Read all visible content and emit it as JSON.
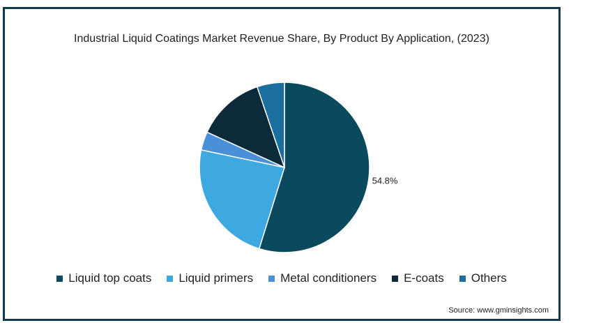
{
  "chart_data": {
    "type": "pie",
    "title": "Industrial Liquid Coatings Market Revenue Share, By Product By Application, (2023)",
    "slices": [
      {
        "label": "Liquid top coats",
        "value": 54.8,
        "color": "#0b4a5e",
        "data_label": "54.8%"
      },
      {
        "label": "Liquid primers",
        "value": 23.5,
        "color": "#3ea9e1"
      },
      {
        "label": "Metal conditioners",
        "value": 3.5,
        "color": "#4a90d9"
      },
      {
        "label": "E-coats",
        "value": 13.0,
        "color": "#0d2a3b"
      },
      {
        "label": "Others",
        "value": 5.2,
        "color": "#1c6e9e"
      }
    ],
    "legend_position": "bottom"
  },
  "source": "Source: www.gminsights.com"
}
